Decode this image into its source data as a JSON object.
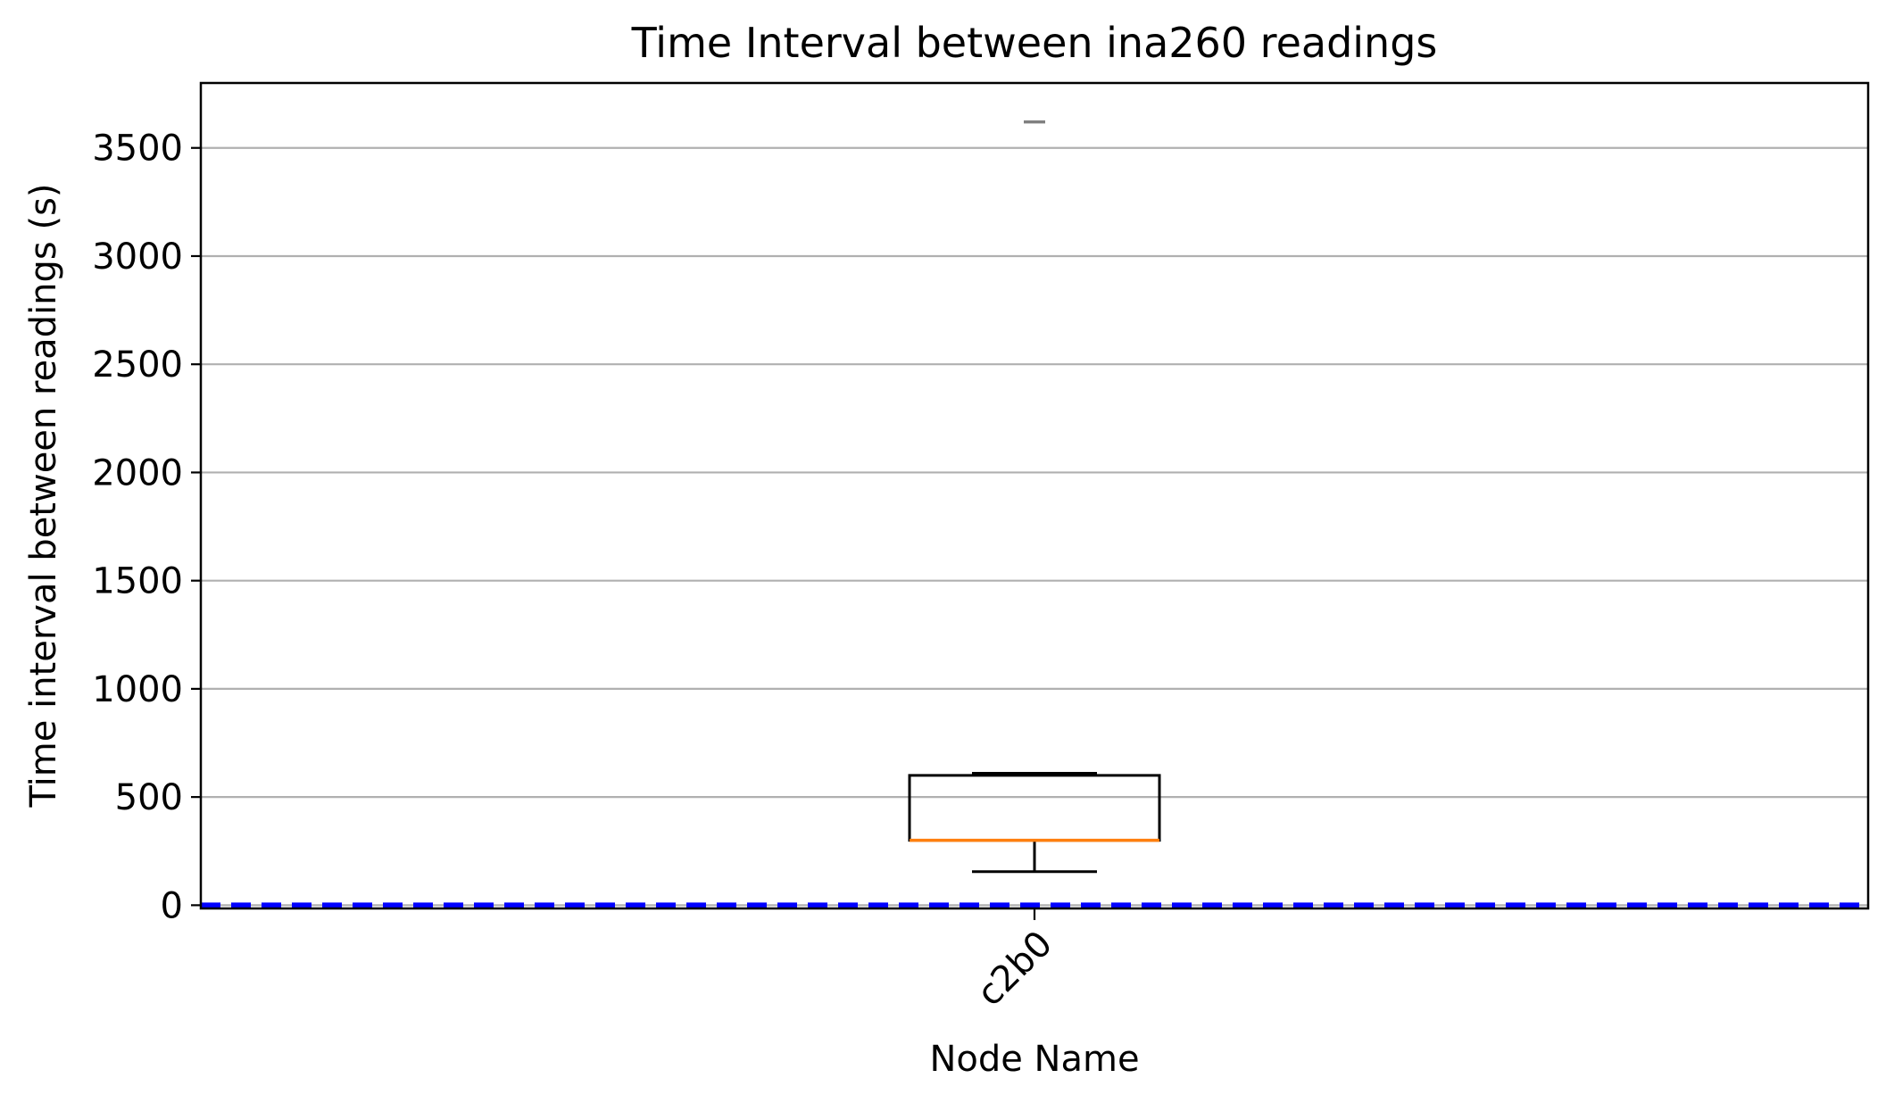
{
  "chart_data": {
    "type": "box",
    "title": "Time Interval between ina260 readings",
    "xlabel": "Node Name",
    "ylabel": "Time interval between readings (s)",
    "categories": [
      "c2b0"
    ],
    "ylim": [
      -15,
      3800
    ],
    "yticks": [
      0,
      500,
      1000,
      1500,
      2000,
      2500,
      3000,
      3500
    ],
    "grid": "horizontal",
    "reference_line": {
      "y": 0,
      "style": "dashed",
      "color": "#0000ff"
    },
    "boxes": [
      {
        "category": "c2b0",
        "whisker_low": 155,
        "q1": 300,
        "median": 300,
        "q3": 600,
        "whisker_high": 610,
        "outliers": [
          3620
        ]
      }
    ],
    "colors": {
      "box": "#000000",
      "median": "#ff7f0e",
      "grid": "#b0b0b0",
      "outlier": "#808080"
    }
  }
}
